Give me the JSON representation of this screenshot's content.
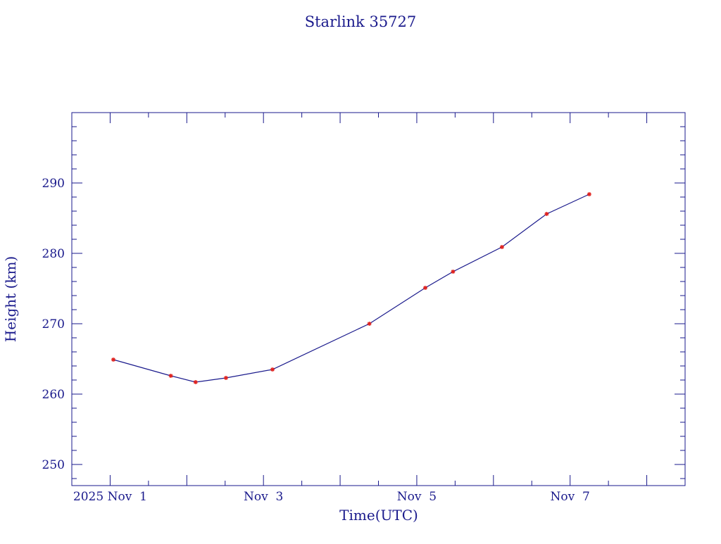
{
  "colors": {
    "axis": "#1a1a8c",
    "line": "#1a1a8c",
    "marker": "#e0201c",
    "background": "#ffffff"
  },
  "chart_data": {
    "type": "line",
    "title": "Starlink 35727",
    "xlabel": "Time(UTC)",
    "ylabel": "Height (km)",
    "x_axis": {
      "kind": "date",
      "range": [
        "2025-10-31T12:00",
        "2025-11-08T12:00"
      ],
      "tick_labels": [
        {
          "date": "2025-11-01",
          "label": "2025 Nov  1"
        },
        {
          "date": "2025-11-03",
          "label": "Nov  3"
        },
        {
          "date": "2025-11-05",
          "label": "Nov  5"
        },
        {
          "date": "2025-11-07",
          "label": "Nov  7"
        }
      ]
    },
    "ylim": [
      247,
      300
    ],
    "y_tick_labels": [
      250,
      260,
      270,
      280,
      290
    ],
    "grid": false,
    "legend": "none",
    "series": [
      {
        "marker": "star",
        "points": [
          {
            "x": "2025-11-01T01:00",
            "y": 264.9
          },
          {
            "x": "2025-11-01T19:00",
            "y": 262.6
          },
          {
            "x": "2025-11-02T02:45",
            "y": 261.7
          },
          {
            "x": "2025-11-02T12:15",
            "y": 262.3
          },
          {
            "x": "2025-11-03T02:50",
            "y": 263.5
          },
          {
            "x": "2025-11-04T09:10",
            "y": 270.0
          },
          {
            "x": "2025-11-05T02:40",
            "y": 275.1
          },
          {
            "x": "2025-11-05T11:20",
            "y": 277.4
          },
          {
            "x": "2025-11-06T02:40",
            "y": 280.9
          },
          {
            "x": "2025-11-06T16:40",
            "y": 285.6
          },
          {
            "x": "2025-11-07T06:00",
            "y": 288.4
          }
        ]
      }
    ]
  }
}
